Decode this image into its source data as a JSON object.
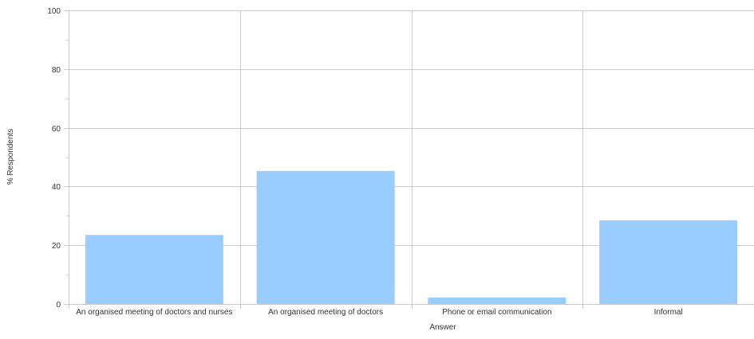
{
  "chart_data": {
    "type": "bar",
    "title": "",
    "xlabel": "Answer",
    "ylabel": "% Respondents",
    "categories": [
      "An organised meeting of doctors and nurses",
      "An organised meeting of doctors",
      "Phone or email communication",
      "Informal"
    ],
    "values": [
      23.5,
      45.3,
      2.2,
      28.5
    ],
    "ylim": [
      0,
      100
    ],
    "yticks": [
      0,
      20,
      40,
      60,
      80,
      100
    ],
    "grid": true,
    "legend": "none",
    "colors": {
      "bar": "#99ccff",
      "grid": "#cccccc",
      "text": "#333333"
    }
  }
}
